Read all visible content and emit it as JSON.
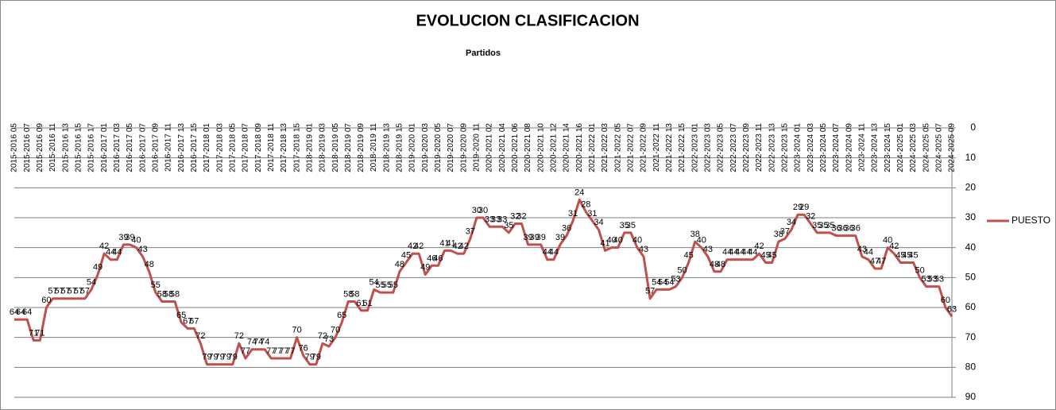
{
  "chart_data": {
    "type": "line",
    "title": "EVOLUCION CLASIFICACION",
    "x_label": "Partidos",
    "categories": [
      "2015-2016 05",
      null,
      "2015-2016 07",
      null,
      "2015-2016 09",
      null,
      "2015-2016 11",
      null,
      "2015-2016 13",
      null,
      "2015-2016 15",
      null,
      "2015-2016 17",
      null,
      "2016-2017 01",
      null,
      "2016-2017 03",
      null,
      "2016-2017 05",
      null,
      "2016-2017 07",
      null,
      "2016-2017 09",
      null,
      "2016-2017 11",
      null,
      "2016-2017 13",
      null,
      "2016-2017 15",
      null,
      "2017-2018 01",
      null,
      "2017-2018 03",
      null,
      "2017-2018 05",
      null,
      "2017-2018 07",
      null,
      "2017-2018 09",
      null,
      "2017-2018 11",
      null,
      "2017-2018 13",
      null,
      "2017-2018 15",
      null,
      "2018-2019 01",
      null,
      "2018-2019 03",
      null,
      "2018-2019 05",
      null,
      "2018-2019 07",
      null,
      "2018-2019 09",
      null,
      "2018-2019 11",
      null,
      "2018-2019 13",
      null,
      "2018-2019 15",
      null,
      "2019-2020 01",
      null,
      "2019-2020 03",
      null,
      "2019-2020 05",
      null,
      "2019-2020 07",
      null,
      "2019-2020 09",
      null,
      "2019-2020 11",
      null,
      "2020-2021 02",
      null,
      "2020-2021 04",
      null,
      "2020-2021 06",
      null,
      "2020-2021 08",
      null,
      "2020-2021 10",
      null,
      "2020-2021 12",
      null,
      "2020-2021 14",
      null,
      "2020-2021 16",
      null,
      "2021-2022 01",
      null,
      "2021-2022 03",
      null,
      "2021-2022 05",
      null,
      "2021-2022 07",
      null,
      "2021-2022 09",
      null,
      "2021-2022 11",
      null,
      "2021-2022 13",
      null,
      "2021-2022 15",
      null,
      "2022-2023 01",
      null,
      "2022-2023 03",
      null,
      "2022-2023 05",
      null,
      "2022-2023 07",
      null,
      "2022-2023 09",
      null,
      "2022-2023 11",
      null,
      "2022-2023 13",
      null,
      "2022-2023 15",
      null,
      "2023-2024 01",
      null,
      "2023-2024 03",
      null,
      "2023-2024 05",
      null,
      "2023-2024 07",
      null,
      "2023-2024 09",
      null,
      "2023-2024 11",
      null,
      "2023-2024 13",
      null,
      "2023-2024 15",
      null,
      "2024-2025 01",
      null,
      "2024-2025 03",
      null,
      "2024-2025 05",
      null,
      "2024-2025 07",
      null,
      "2024-2025 09"
    ],
    "series": [
      {
        "name": "PUESTO",
        "color": "#c0504d",
        "values": [
          64,
          64,
          64,
          71,
          71,
          60,
          57,
          57,
          57,
          57,
          57,
          57,
          54,
          49,
          42,
          44,
          44,
          39,
          39,
          40,
          43,
          48,
          55,
          58,
          58,
          58,
          65,
          67,
          67,
          72,
          79,
          79,
          79,
          79,
          79,
          72,
          77,
          74,
          74,
          74,
          77,
          77,
          77,
          77,
          70,
          76,
          79,
          79,
          72,
          73,
          70,
          65,
          58,
          58,
          61,
          61,
          54,
          55,
          55,
          55,
          48,
          45,
          42,
          42,
          49,
          46,
          46,
          41,
          41,
          42,
          42,
          37,
          30,
          30,
          33,
          33,
          33,
          35,
          32,
          32,
          39,
          39,
          39,
          44,
          44,
          39,
          36,
          31,
          24,
          28,
          31,
          34,
          41,
          40,
          40,
          35,
          35,
          40,
          43,
          57,
          54,
          54,
          54,
          53,
          50,
          45,
          38,
          40,
          43,
          48,
          48,
          44,
          44,
          44,
          44,
          44,
          42,
          45,
          45,
          38,
          37,
          34,
          29,
          29,
          32,
          35,
          35,
          35,
          36,
          36,
          36,
          36,
          43,
          44,
          47,
          47,
          40,
          42,
          45,
          45,
          45,
          50,
          53,
          53,
          53,
          60,
          63
        ]
      }
    ],
    "ylim": [
      0,
      90
    ],
    "yticks": [
      0,
      10,
      20,
      30,
      40,
      50,
      60,
      70,
      80,
      90
    ],
    "y_inverted": true,
    "y_axis_side": "right",
    "grid": true,
    "legend": "right",
    "data_labels": true
  }
}
